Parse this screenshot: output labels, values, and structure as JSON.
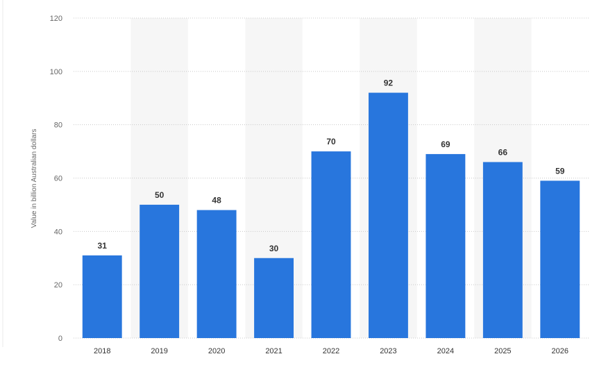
{
  "chart_data": {
    "type": "bar",
    "title": "",
    "xlabel": "",
    "ylabel": "Value in billion Australian dollars",
    "categories": [
      "2018",
      "2019",
      "2020",
      "2021",
      "2022",
      "2023",
      "2024",
      "2025",
      "2026"
    ],
    "values": [
      31,
      50,
      48,
      30,
      70,
      92,
      69,
      66,
      59
    ],
    "ylim": [
      0,
      120
    ],
    "yticks": [
      0,
      20,
      40,
      60,
      80,
      100,
      120
    ],
    "grid": true,
    "legend": "none",
    "bar_color": "#2876dd",
    "band_color": "#f6f6f6"
  }
}
